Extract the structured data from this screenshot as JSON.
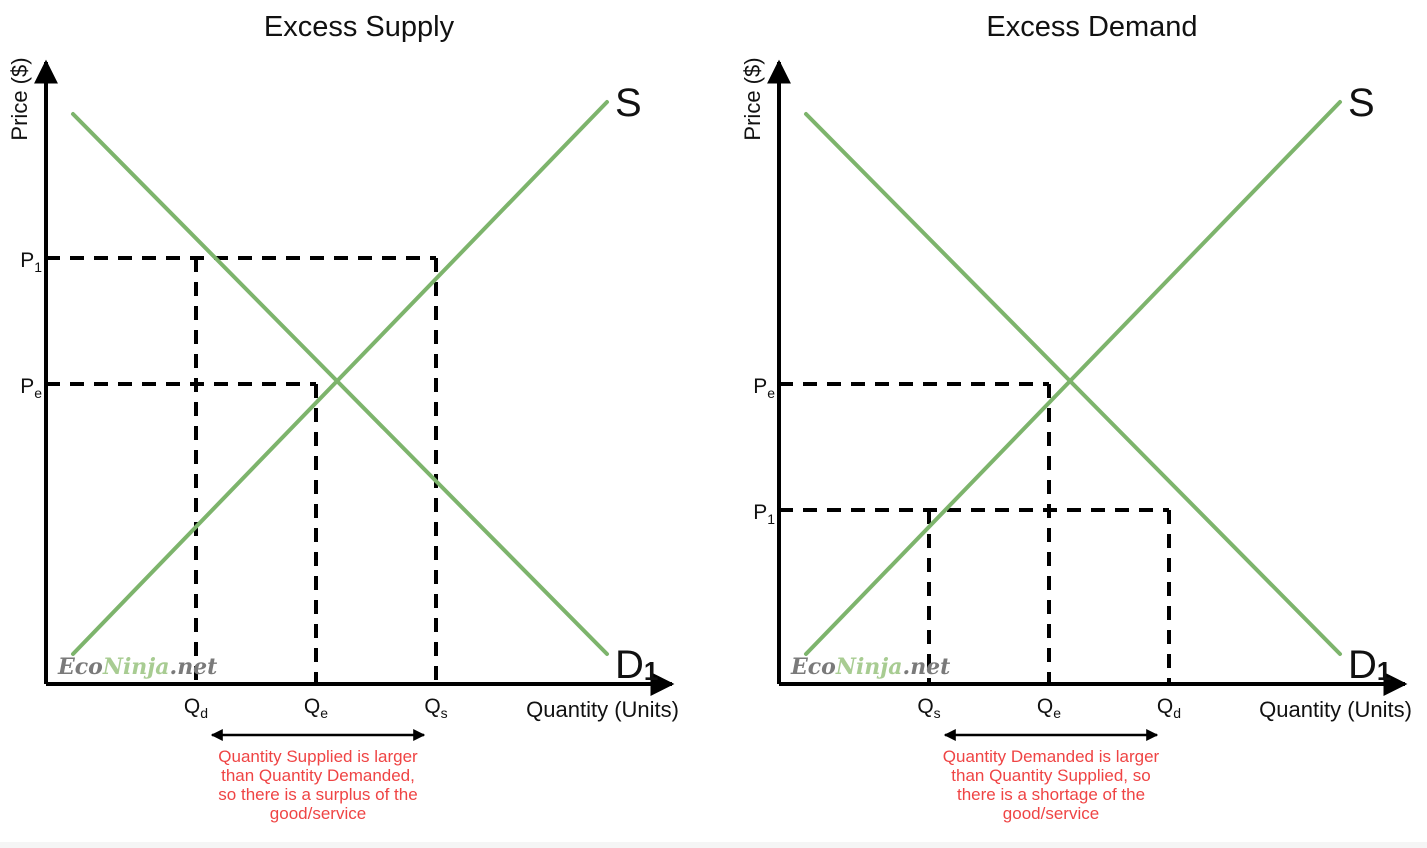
{
  "chart_data": [
    {
      "type": "line",
      "title": "Excess Supply",
      "xlabel": "Quantity (Units)",
      "ylabel": "Price ($)",
      "xlim": [
        0,
        10
      ],
      "ylim": [
        0,
        10
      ],
      "grid": false,
      "series": [
        {
          "name": "S",
          "label": "S",
          "sub": "",
          "x": [
            0.45,
            9.35
          ],
          "y": [
            0.5,
            9.7
          ]
        },
        {
          "name": "D1",
          "label": "D",
          "sub": "1",
          "x": [
            0.45,
            9.35
          ],
          "y": [
            9.5,
            0.5
          ]
        }
      ],
      "price_levels": [
        {
          "main": "P",
          "sub": "1",
          "y": 7.1
        },
        {
          "main": "P",
          "sub": "e",
          "y": 5.0
        }
      ],
      "quantity_levels": [
        {
          "main": "Q",
          "sub": "d",
          "x": 2.5
        },
        {
          "main": "Q",
          "sub": "e",
          "x": 4.5
        },
        {
          "main": "Q",
          "sub": "s",
          "x": 6.5
        }
      ],
      "guides": [
        {
          "from": [
            0,
            7.1
          ],
          "to": [
            6.5,
            7.1
          ]
        },
        {
          "from": [
            0,
            5.0
          ],
          "to": [
            4.5,
            5.0
          ]
        },
        {
          "from": [
            2.5,
            7.1
          ],
          "to": [
            2.5,
            0
          ]
        },
        {
          "from": [
            4.5,
            5.0
          ],
          "to": [
            4.5,
            0
          ]
        },
        {
          "from": [
            6.5,
            7.1
          ],
          "to": [
            6.5,
            0
          ]
        }
      ],
      "bracket": [
        2.5,
        6.5
      ],
      "note": [
        "Quantity Supplied is larger",
        "than Quantity Demanded,",
        "so there is a surplus of the",
        "good/service"
      ],
      "watermark": {
        "part1": "Eco",
        "part2": "Ninja",
        "part3": ".net"
      },
      "colors": {
        "curve": "#7db46c",
        "note": "#ef4444",
        "axis": "#000000"
      }
    },
    {
      "type": "line",
      "title": "Excess Demand",
      "xlabel": "Quantity (Units)",
      "ylabel": "Price ($)",
      "xlim": [
        0,
        10
      ],
      "ylim": [
        0,
        10
      ],
      "grid": false,
      "series": [
        {
          "name": "S",
          "label": "S",
          "sub": "",
          "x": [
            0.45,
            9.35
          ],
          "y": [
            0.5,
            9.7
          ]
        },
        {
          "name": "D1",
          "label": "D",
          "sub": "1",
          "x": [
            0.45,
            9.35
          ],
          "y": [
            9.5,
            0.5
          ]
        }
      ],
      "price_levels": [
        {
          "main": "P",
          "sub": "e",
          "y": 5.0
        },
        {
          "main": "P",
          "sub": "1",
          "y": 2.9
        }
      ],
      "quantity_levels": [
        {
          "main": "Q",
          "sub": "s",
          "x": 2.5
        },
        {
          "main": "Q",
          "sub": "e",
          "x": 4.5
        },
        {
          "main": "Q",
          "sub": "d",
          "x": 6.5
        }
      ],
      "guides": [
        {
          "from": [
            0,
            5.0
          ],
          "to": [
            4.5,
            5.0
          ]
        },
        {
          "from": [
            0,
            2.9
          ],
          "to": [
            6.5,
            2.9
          ]
        },
        {
          "from": [
            4.5,
            5.0
          ],
          "to": [
            4.5,
            0
          ]
        },
        {
          "from": [
            2.5,
            2.9
          ],
          "to": [
            2.5,
            0
          ]
        },
        {
          "from": [
            6.5,
            2.9
          ],
          "to": [
            6.5,
            0
          ]
        }
      ],
      "bracket": [
        2.5,
        6.5
      ],
      "note": [
        "Quantity Demanded is larger",
        "than Quantity Supplied, so",
        "there is a shortage of the",
        "good/service"
      ],
      "watermark": {
        "part1": "Eco",
        "part2": "Ninja",
        "part3": ".net"
      },
      "colors": {
        "curve": "#7db46c",
        "note": "#ef4444",
        "axis": "#000000"
      }
    }
  ]
}
